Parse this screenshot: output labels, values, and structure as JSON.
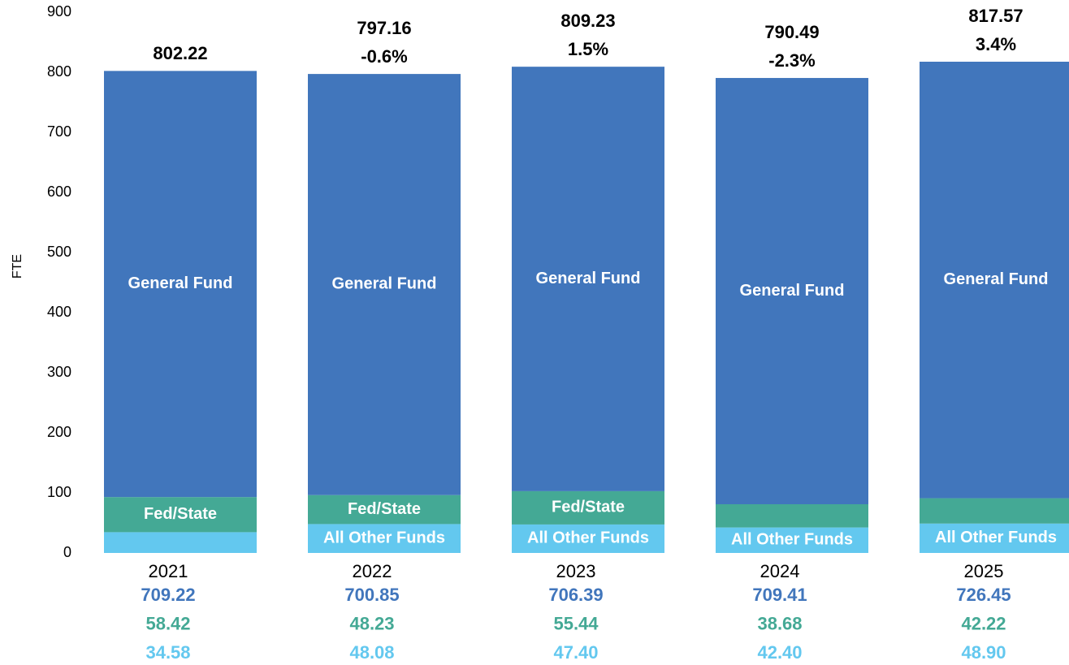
{
  "chart_data": {
    "type": "stacked_bar",
    "y_label": "FTE",
    "categories": [
      "2021",
      "2022",
      "2023",
      "2024",
      "2025"
    ],
    "series": [
      {
        "name": "General Fund",
        "color": "#4176bc",
        "values": [
          709.22,
          700.85,
          706.39,
          709.41,
          726.45
        ],
        "labeled": [
          true,
          true,
          true,
          true,
          true
        ]
      },
      {
        "name": "Fed/State",
        "color": "#44a995",
        "values": [
          58.42,
          48.23,
          55.44,
          38.68,
          42.22
        ],
        "labeled": [
          true,
          true,
          true,
          false,
          false
        ]
      },
      {
        "name": "All Other Funds",
        "color": "#63c8ef",
        "values": [
          34.58,
          48.08,
          47.4,
          42.4,
          48.9
        ],
        "value_labels": [
          "34.58",
          "48.08",
          "47.40",
          "42.40",
          "48.90"
        ],
        "labeled": [
          false,
          true,
          true,
          true,
          true
        ]
      }
    ],
    "totals": [
      802.22,
      797.16,
      809.23,
      790.49,
      817.57
    ],
    "changes": [
      null,
      -0.6,
      1.5,
      -2.3,
      3.4
    ],
    "change_labels": [
      null,
      "-0.6%",
      "1.5%",
      "-2.3%",
      "3.4%"
    ],
    "ylim": [
      0,
      900
    ],
    "yticks": [
      0,
      100,
      200,
      300,
      400,
      500,
      600,
      700,
      800,
      900
    ]
  }
}
